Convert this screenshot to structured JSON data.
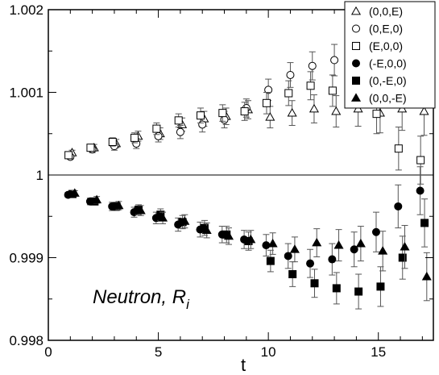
{
  "chart_data": {
    "type": "scatter",
    "title": "",
    "xlabel": "t",
    "ylabel": "",
    "xlim": [
      0,
      17.5
    ],
    "ylim": [
      0.998,
      1.002
    ],
    "xticks": [
      0,
      5,
      10,
      15
    ],
    "xtick_labels": [
      "0",
      "5",
      "10",
      "15"
    ],
    "yticks": [
      0.998,
      0.999,
      1,
      1.001,
      1.002
    ],
    "ytick_labels": [
      "0.998",
      "0.999",
      "1",
      "1.001",
      "1.002"
    ],
    "reference_line_y": 1,
    "legend_position": "top-right",
    "annotation": {
      "main": "Neutron, R",
      "sub": "i"
    },
    "series": [
      {
        "name": "(0,0,E)",
        "marker": "triangle",
        "filled": false,
        "x": [
          1,
          2,
          3,
          4,
          5,
          6,
          7,
          8,
          9,
          10,
          11,
          12,
          13,
          14,
          15,
          16,
          17
        ],
        "y": [
          1.00027,
          1.00033,
          1.00038,
          1.00047,
          1.0005,
          1.00061,
          1.00068,
          1.00071,
          1.00079,
          1.0007,
          1.00075,
          1.0008,
          1.00077,
          1.0008,
          1.00075,
          1.0008,
          1.00077
        ],
        "err": [
          3e-05,
          4e-05,
          5e-05,
          6e-05,
          7e-05,
          8e-05,
          9e-05,
          0.0001,
          0.00011,
          0.00013,
          0.00015,
          0.00017,
          0.00019,
          0.00021,
          0.00024,
          0.00026,
          0.00029
        ]
      },
      {
        "name": "(0,E,0)",
        "marker": "circle",
        "filled": false,
        "x": [
          1,
          2,
          3,
          4,
          5,
          6,
          7,
          8,
          9,
          10,
          11,
          12,
          13,
          14,
          15,
          16,
          17
        ],
        "y": [
          1.00022,
          1.00031,
          1.00035,
          1.00038,
          1.00047,
          1.00052,
          1.00061,
          1.00067,
          1.00081,
          1.00103,
          1.00121,
          1.00132,
          1.00139,
          1.00125,
          1.00148,
          1.00121,
          1.00122
        ],
        "err": [
          3e-05,
          4e-05,
          5e-05,
          6e-05,
          7e-05,
          8e-05,
          9e-05,
          0.0001,
          0.00011,
          0.00013,
          0.00015,
          0.00017,
          0.00019,
          0.00021,
          0.00024,
          0.00026,
          0.00029
        ]
      },
      {
        "name": "(E,0,0)",
        "marker": "square",
        "filled": false,
        "x": [
          1,
          2,
          3,
          4,
          5,
          6,
          7,
          8,
          9,
          10,
          11,
          12,
          13,
          14,
          15,
          16,
          17
        ],
        "y": [
          1.00024,
          1.00033,
          1.0004,
          1.00045,
          1.00056,
          1.00066,
          1.00072,
          1.00075,
          1.00077,
          1.00087,
          1.00099,
          1.00108,
          1.00102,
          1.00108,
          1.00074,
          1.00032,
          1.00018
        ],
        "err": [
          3e-05,
          4e-05,
          5e-05,
          6e-05,
          7e-05,
          8e-05,
          9e-05,
          0.0001,
          0.00011,
          0.00013,
          0.00015,
          0.00017,
          0.00019,
          0.00021,
          0.00024,
          0.00026,
          0.00029
        ]
      },
      {
        "name": "(-E,0,0)",
        "marker": "circle",
        "filled": true,
        "x": [
          1,
          2,
          3,
          4,
          5,
          6,
          7,
          8,
          9,
          10,
          11,
          12,
          13,
          14,
          15,
          16,
          17
        ],
        "y": [
          0.99976,
          0.99968,
          0.99962,
          0.99955,
          0.99948,
          0.9994,
          0.99934,
          0.99928,
          0.99922,
          0.99915,
          0.99902,
          0.99893,
          0.99898,
          0.9991,
          0.99931,
          0.99962,
          0.99981
        ],
        "err": [
          3e-05,
          4e-05,
          5e-05,
          6e-05,
          7e-05,
          8e-05,
          9e-05,
          0.0001,
          0.00011,
          0.00013,
          0.00015,
          0.00017,
          0.00019,
          0.00021,
          0.00024,
          0.00026,
          0.00029
        ]
      },
      {
        "name": "(0,-E,0)",
        "marker": "square",
        "filled": true,
        "x": [
          1,
          2,
          3,
          4,
          5,
          6,
          7,
          8,
          9,
          10,
          11,
          12,
          13,
          14,
          15,
          16,
          17
        ],
        "y": [
          0.99977,
          0.99968,
          0.99962,
          0.99958,
          0.99952,
          0.99943,
          0.99936,
          0.99928,
          0.9992,
          0.99896,
          0.9988,
          0.99869,
          0.99863,
          0.99859,
          0.99865,
          0.999,
          0.99942
        ],
        "err": [
          3e-05,
          4e-05,
          5e-05,
          6e-05,
          7e-05,
          8e-05,
          9e-05,
          0.0001,
          0.00011,
          0.00013,
          0.00015,
          0.00017,
          0.00019,
          0.00021,
          0.00024,
          0.00026,
          0.00029
        ]
      },
      {
        "name": "(0,0,-E)",
        "marker": "triangle",
        "filled": true,
        "x": [
          1,
          2,
          3,
          4,
          5,
          6,
          7,
          8,
          9,
          10,
          11,
          12,
          13,
          14,
          15,
          16,
          17
        ],
        "y": [
          0.99978,
          0.9997,
          0.99963,
          0.99957,
          0.99948,
          0.99944,
          0.99933,
          0.99926,
          0.99922,
          0.99917,
          0.9991,
          0.99918,
          0.99915,
          0.99917,
          0.99908,
          0.99913,
          0.99877
        ],
        "err": [
          3e-05,
          4e-05,
          5e-05,
          6e-05,
          7e-05,
          8e-05,
          9e-05,
          0.0001,
          0.00011,
          0.00013,
          0.00015,
          0.00017,
          0.00019,
          0.00021,
          0.00024,
          0.00026,
          0.00029
        ]
      }
    ]
  }
}
